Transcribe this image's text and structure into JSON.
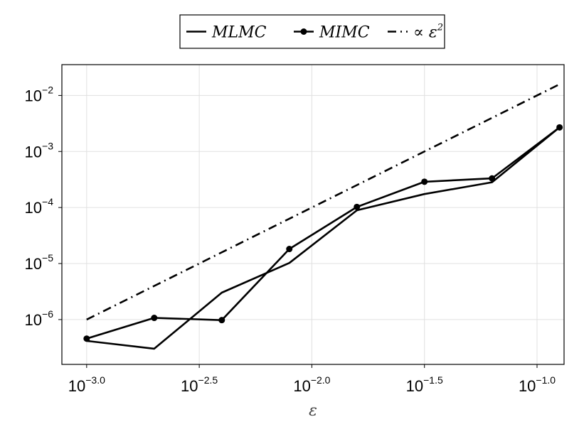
{
  "chart_data": {
    "type": "line",
    "xlabel": "ε",
    "x_scale": "log10",
    "y_scale": "log10",
    "xlim_log10": [
      -3.11,
      -0.88
    ],
    "ylim_log10": [
      -6.8,
      -1.45
    ],
    "grid": true,
    "legend_position": "top-center-outside",
    "x_ticks": [
      {
        "base": "10",
        "exp": "−3.0",
        "value": -3.0
      },
      {
        "base": "10",
        "exp": "−2.5",
        "value": -2.5
      },
      {
        "base": "10",
        "exp": "−2.0",
        "value": -2.0
      },
      {
        "base": "10",
        "exp": "−1.5",
        "value": -1.5
      },
      {
        "base": "10",
        "exp": "−1.0",
        "value": -1.0
      }
    ],
    "y_ticks": [
      {
        "base": "10",
        "exp": "−2",
        "value": -2
      },
      {
        "base": "10",
        "exp": "−3",
        "value": -3
      },
      {
        "base": "10",
        "exp": "−4",
        "value": -4
      },
      {
        "base": "10",
        "exp": "−5",
        "value": -5
      },
      {
        "base": "10",
        "exp": "−6",
        "value": -6
      }
    ],
    "series": [
      {
        "name": "MLMC",
        "style": "solid",
        "markers": false,
        "color": "#000000",
        "log10_x": [
          -3.0,
          -2.7,
          -2.4,
          -2.1,
          -1.8,
          -1.5,
          -1.2,
          -0.9
        ],
        "log10_y": [
          -6.38,
          -6.52,
          -5.52,
          -4.99,
          -4.05,
          -3.76,
          -3.55,
          -2.57
        ]
      },
      {
        "name": "MIMC",
        "style": "solid",
        "markers": true,
        "color": "#000000",
        "log10_x": [
          -3.0,
          -2.7,
          -2.4,
          -2.1,
          -1.8,
          -1.5,
          -1.2,
          -0.9
        ],
        "log10_y": [
          -6.34,
          -5.97,
          -6.01,
          -4.74,
          -3.99,
          -3.54,
          -3.48,
          -2.57
        ]
      },
      {
        "name": "∝ ε²",
        "label_text": "∝ ε",
        "label_sup": "2",
        "style": "dashdot",
        "markers": false,
        "color": "#000000",
        "log10_x": [
          -3.0,
          -0.9
        ],
        "log10_y": [
          -6.0,
          -1.8
        ]
      }
    ]
  }
}
